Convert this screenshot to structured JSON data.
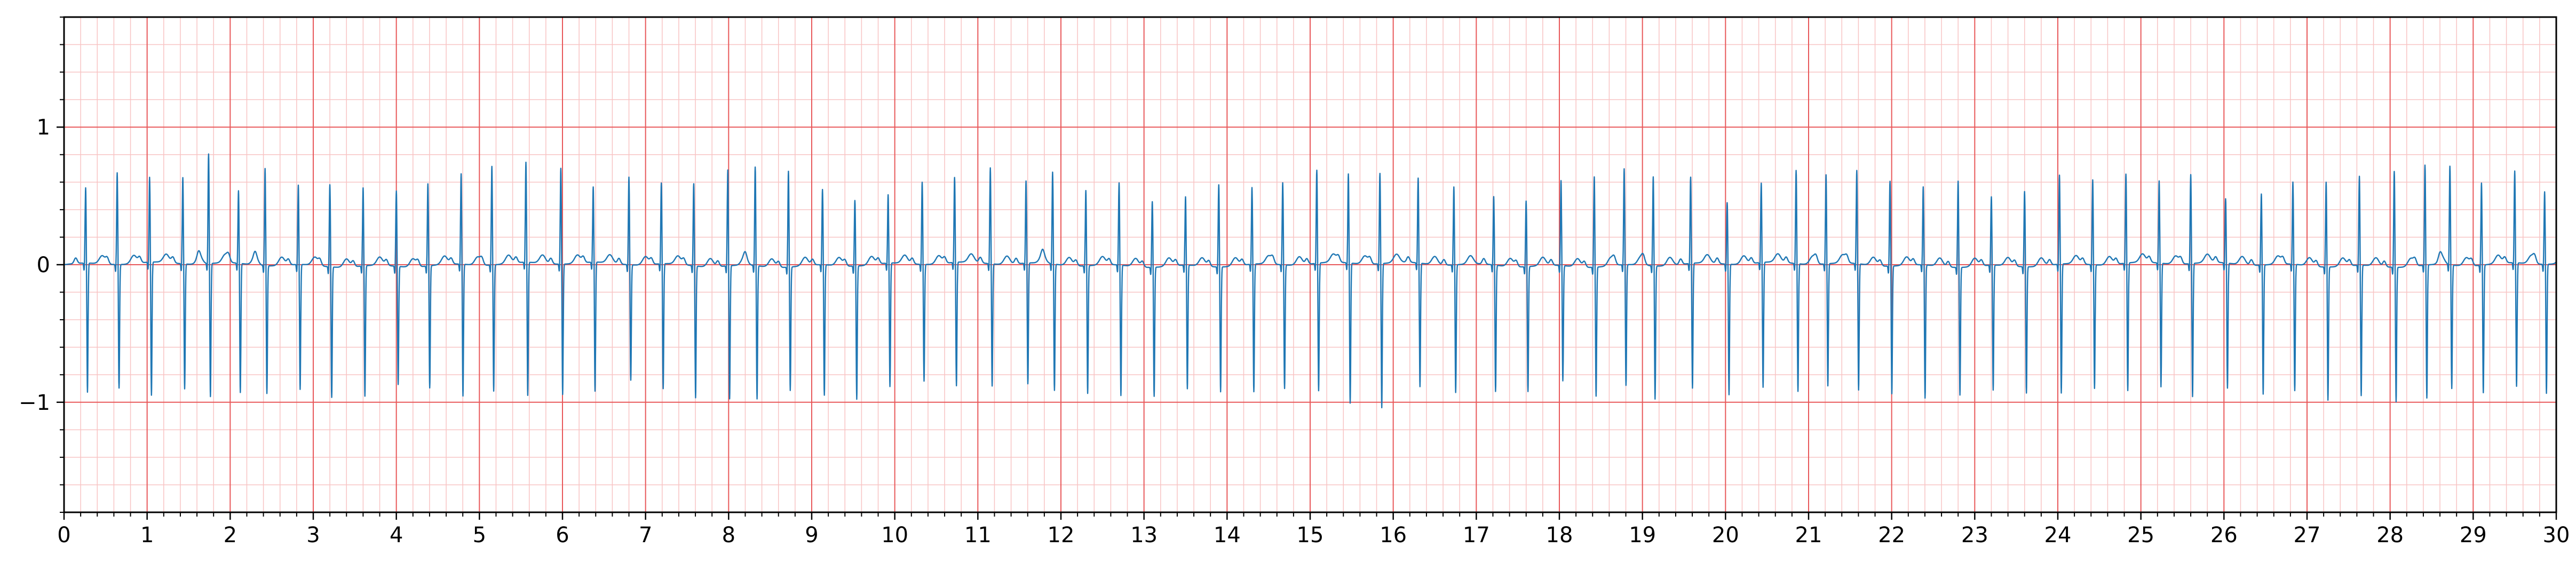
{
  "chart_data": {
    "type": "line",
    "title": "",
    "xlabel": "",
    "ylabel": "",
    "xlim": [
      0,
      30
    ],
    "ylim": [
      -1.8,
      1.8
    ],
    "x_ticks": [
      0,
      1,
      2,
      3,
      4,
      5,
      6,
      7,
      8,
      9,
      10,
      11,
      12,
      13,
      14,
      15,
      16,
      17,
      18,
      19,
      20,
      21,
      22,
      23,
      24,
      25,
      26,
      27,
      28,
      29,
      30
    ],
    "y_ticks": [
      -1,
      0,
      1
    ],
    "y_tick_labels": [
      "−1",
      "0",
      "1"
    ],
    "grid": {
      "major_x": 1,
      "major_y": 1,
      "minor_x": 0.2,
      "minor_y": 0.2
    },
    "colors": {
      "signal": "#1f77b4",
      "grid_major": "#e8585a",
      "grid_minor": "#f8c4c4",
      "frame": "#000000"
    },
    "series": [
      {
        "beat_times_s": [
          0.26,
          0.64,
          1.03,
          1.43,
          1.74,
          2.1,
          2.42,
          2.82,
          3.2,
          3.6,
          4.0,
          4.38,
          4.78,
          5.15,
          5.56,
          5.98,
          6.37,
          6.8,
          7.19,
          7.58,
          7.99,
          8.32,
          8.72,
          9.13,
          9.52,
          9.92,
          10.33,
          10.72,
          11.15,
          11.58,
          11.9,
          12.3,
          12.7,
          13.1,
          13.5,
          13.9,
          14.3,
          14.67,
          15.08,
          15.46,
          15.84,
          16.3,
          16.73,
          17.21,
          17.6,
          18.02,
          18.42,
          18.78,
          19.13,
          19.58,
          20.02,
          20.43,
          20.85,
          21.21,
          21.58,
          21.98,
          22.38,
          22.8,
          23.2,
          23.6,
          24.02,
          24.42,
          24.82,
          25.22,
          25.6,
          26.02,
          26.45,
          26.83,
          27.23,
          27.63,
          28.05,
          28.42,
          28.72,
          29.1,
          29.5,
          29.86
        ],
        "r_peak_mv": [
          0.55,
          0.67,
          0.62,
          0.63,
          0.8,
          0.53,
          0.71,
          0.58,
          0.6,
          0.57,
          0.55,
          0.6,
          0.66,
          0.72,
          0.73,
          0.7,
          0.55,
          0.64,
          0.59,
          0.6,
          0.7,
          0.72,
          0.7,
          0.55,
          0.48,
          0.5,
          0.6,
          0.62,
          0.7,
          0.6,
          0.67,
          0.55,
          0.6,
          0.48,
          0.5,
          0.6,
          0.56,
          0.6,
          0.68,
          0.65,
          0.66,
          0.62,
          0.57,
          0.5,
          0.48,
          0.62,
          0.66,
          0.7,
          0.65,
          0.63,
          0.45,
          0.58,
          0.68,
          0.65,
          0.68,
          0.62,
          0.57,
          0.63,
          0.5,
          0.55,
          0.65,
          0.62,
          0.65,
          0.6,
          0.65,
          0.47,
          0.52,
          0.6,
          0.62,
          0.65,
          0.7,
          0.73,
          0.72,
          0.6,
          0.67,
          0.53
        ],
        "s_trough_mv": [
          -0.94,
          -0.9,
          -0.97,
          -0.91,
          -0.97,
          -0.94,
          -0.93,
          -0.91,
          -0.95,
          -0.95,
          -0.86,
          -0.89,
          -0.96,
          -0.92,
          -0.97,
          -0.95,
          -0.94,
          -0.84,
          -0.91,
          -0.96,
          -0.97,
          -0.97,
          -0.9,
          -0.95,
          -0.97,
          -0.9,
          -0.85,
          -0.9,
          -0.89,
          -0.88,
          -0.92,
          -0.93,
          -0.95,
          -0.94,
          -0.9,
          -0.91,
          -0.93,
          -0.9,
          -0.93,
          -1.02,
          -1.05,
          -0.9,
          -0.93,
          -0.92,
          -0.91,
          -0.84,
          -0.94,
          -0.88,
          -0.97,
          -0.91,
          -0.95,
          -0.91,
          -0.93,
          -0.89,
          -0.92,
          -0.93,
          -0.97,
          -0.93,
          -0.91,
          -0.92,
          -0.94,
          -0.9,
          -0.93,
          -0.9,
          -0.97,
          -0.91,
          -0.94,
          -0.92,
          -0.97,
          -0.95,
          -0.98,
          -0.97,
          -0.9,
          -0.93,
          -0.9,
          -0.94
        ],
        "baseline_mv": 0.0
      }
    ]
  }
}
